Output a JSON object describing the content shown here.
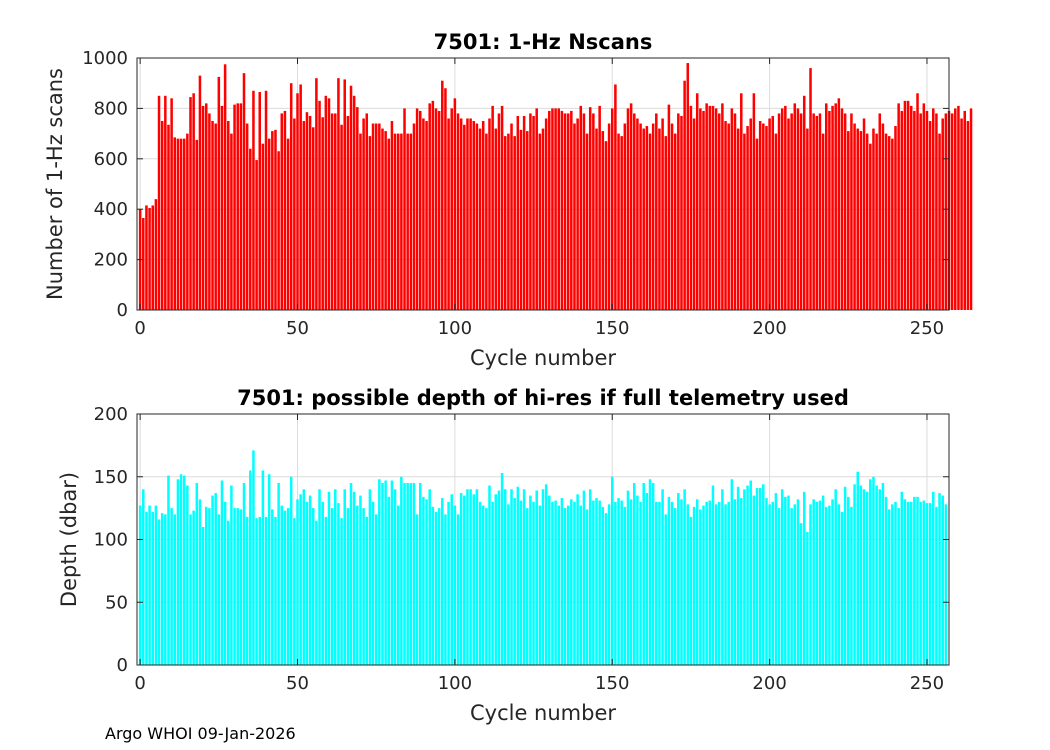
{
  "footer": "Argo WHOI 09-Jan-2026",
  "chart_data": [
    {
      "type": "bar",
      "title": "7501: 1-Hz Nscans",
      "xlabel": "Cycle number",
      "ylabel": "Number of 1-Hz scans",
      "xlim": [
        -1,
        257
      ],
      "ylim": [
        0,
        1000
      ],
      "xticks": [
        0,
        50,
        100,
        150,
        200,
        250
      ],
      "yticks": [
        0,
        200,
        400,
        600,
        800,
        1000
      ],
      "grid": true,
      "color": "#ff0000",
      "x_start": 0,
      "values": [
        400,
        365,
        415,
        405,
        415,
        440,
        850,
        750,
        850,
        735,
        840,
        685,
        680,
        680,
        680,
        700,
        845,
        860,
        675,
        930,
        810,
        820,
        780,
        750,
        740,
        925,
        810,
        975,
        750,
        700,
        815,
        820,
        820,
        940,
        740,
        640,
        870,
        595,
        865,
        660,
        870,
        680,
        710,
        715,
        630,
        780,
        790,
        680,
        900,
        760,
        860,
        895,
        750,
        785,
        770,
        725,
        920,
        830,
        765,
        850,
        840,
        780,
        780,
        920,
        735,
        915,
        770,
        890,
        850,
        805,
        700,
        760,
        780,
        690,
        740,
        740,
        740,
        720,
        710,
        680,
        750,
        700,
        700,
        700,
        800,
        700,
        700,
        740,
        800,
        790,
        760,
        750,
        820,
        830,
        800,
        790,
        910,
        880,
        760,
        800,
        840,
        780,
        760,
        735,
        760,
        760,
        750,
        740,
        720,
        750,
        700,
        760,
        810,
        720,
        780,
        810,
        690,
        700,
        740,
        690,
        770,
        715,
        770,
        710,
        780,
        770,
        800,
        700,
        720,
        760,
        790,
        800,
        800,
        800,
        790,
        780,
        780,
        790,
        740,
        760,
        810,
        780,
        700,
        805,
        780,
        720,
        810,
        710,
        670,
        740,
        800,
        895,
        700,
        690,
        740,
        800,
        820,
        780,
        760,
        740,
        720,
        730,
        700,
        740,
        780,
        720,
        760,
        690,
        815,
        740,
        700,
        780,
        770,
        910,
        980,
        810,
        760,
        860,
        800,
        790,
        820,
        810,
        810,
        800,
        780,
        820,
        750,
        740,
        800,
        780,
        720,
        860,
        700,
        730,
        760,
        860,
        680,
        750,
        740,
        730,
        760,
        770,
        700,
        780,
        800,
        810,
        760,
        780,
        820,
        800,
        780,
        850,
        720,
        960,
        780,
        770,
        780,
        700,
        820,
        790,
        810,
        820,
        840,
        800,
        780,
        710,
        780,
        740,
        720,
        710,
        760,
        700,
        660,
        720,
        700,
        780,
        740,
        700,
        690,
        680,
        730,
        820,
        790,
        830,
        830,
        810,
        790,
        860,
        780,
        820,
        790,
        750,
        800,
        780,
        700,
        760,
        780,
        790,
        780,
        800,
        810,
        760,
        790,
        750,
        800
      ]
    },
    {
      "type": "bar",
      "title": "7501: possible depth of hi-res if full telemetry used",
      "xlabel": "Cycle number",
      "ylabel": "Depth (dbar)",
      "xlim": [
        -1,
        257
      ],
      "ylim": [
        0,
        200
      ],
      "xticks": [
        0,
        50,
        100,
        150,
        200,
        250
      ],
      "yticks": [
        0,
        50,
        100,
        150,
        200
      ],
      "grid": true,
      "color": "#00ffff",
      "x_start": 0,
      "values": [
        127,
        140,
        122,
        127,
        122,
        127,
        116,
        121,
        120,
        151,
        125,
        120,
        148,
        152,
        151,
        143,
        120,
        123,
        145,
        132,
        110,
        126,
        125,
        135,
        137,
        120,
        147,
        130,
        115,
        143,
        125,
        125,
        124,
        145,
        118,
        155,
        171,
        117,
        118,
        155,
        118,
        152,
        124,
        118,
        145,
        127,
        123,
        125,
        150,
        117,
        132,
        136,
        140,
        130,
        135,
        125,
        115,
        140,
        130,
        118,
        138,
        125,
        140,
        129,
        117,
        140,
        125,
        145,
        138,
        127,
        135,
        125,
        118,
        140,
        130,
        120,
        148,
        145,
        147,
        134,
        147,
        140,
        127,
        150,
        145,
        145,
        145,
        145,
        120,
        145,
        134,
        132,
        140,
        126,
        122,
        125,
        133,
        120,
        130,
        136,
        127,
        120,
        137,
        135,
        140,
        140,
        136,
        140,
        130,
        127,
        125,
        143,
        130,
        136,
        139,
        153,
        140,
        128,
        140,
        133,
        142,
        131,
        140,
        125,
        135,
        130,
        139,
        127,
        140,
        144,
        135,
        130,
        131,
        127,
        133,
        125,
        127,
        132,
        130,
        136,
        127,
        139,
        124,
        140,
        131,
        133,
        131,
        126,
        121,
        128,
        150,
        130,
        133,
        131,
        126,
        139,
        132,
        145,
        135,
        130,
        145,
        137,
        148,
        145,
        130,
        130,
        140,
        120,
        134,
        130,
        125,
        137,
        132,
        140,
        128,
        118,
        126,
        132,
        124,
        127,
        130,
        131,
        143,
        128,
        130,
        140,
        128,
        130,
        148,
        132,
        142,
        133,
        140,
        143,
        147,
        135,
        141,
        141,
        144,
        133,
        128,
        130,
        137,
        125,
        140,
        134,
        135,
        125,
        128,
        132,
        113,
        138,
        106,
        128,
        132,
        130,
        131,
        135,
        126,
        127,
        132,
        140,
        128,
        122,
        142,
        134,
        126,
        144,
        154,
        143,
        140,
        138,
        148,
        150,
        143,
        140,
        145,
        134,
        124,
        128,
        130,
        125,
        138,
        132,
        130,
        130,
        134,
        134,
        130,
        131,
        129,
        129,
        138,
        126,
        137,
        135,
        128
      ]
    }
  ]
}
